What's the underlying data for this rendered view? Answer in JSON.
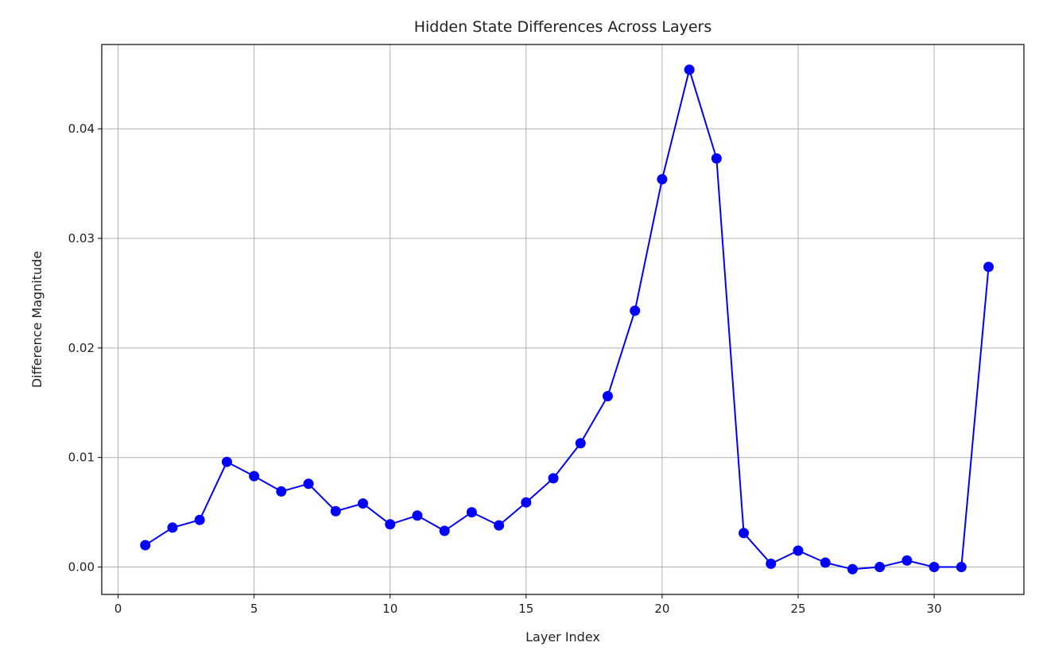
{
  "chart_data": {
    "type": "line",
    "title": "Hidden State Differences Across Layers",
    "xlabel": "Layer Index",
    "ylabel": "Difference Magnitude",
    "xlim": [
      -0.6,
      33.3
    ],
    "ylim": [
      -0.0025,
      0.0477
    ],
    "xticks": [
      0,
      5,
      10,
      15,
      20,
      25,
      30
    ],
    "yticks": [
      0.0,
      0.01,
      0.02,
      0.03,
      0.04
    ],
    "ytick_labels": [
      "0.00",
      "0.01",
      "0.02",
      "0.03",
      "0.04"
    ],
    "grid": true,
    "color": "#0000ff",
    "marker": "circle",
    "x": [
      1,
      2,
      3,
      4,
      5,
      6,
      7,
      8,
      9,
      10,
      11,
      12,
      13,
      14,
      15,
      16,
      17,
      18,
      19,
      20,
      21,
      22,
      23,
      24,
      25,
      26,
      27,
      28,
      29,
      30,
      31,
      32
    ],
    "y": [
      0.002,
      0.0036,
      0.0043,
      0.0096,
      0.0083,
      0.0069,
      0.0076,
      0.0051,
      0.0058,
      0.0039,
      0.0047,
      0.0033,
      0.005,
      0.0038,
      0.0059,
      0.0081,
      0.0113,
      0.0156,
      0.0234,
      0.0354,
      0.0454,
      0.0373,
      0.0031,
      0.0003,
      0.0015,
      0.0004,
      -0.0002,
      0.0,
      0.0006,
      0.0,
      0.0,
      0.0274
    ]
  }
}
